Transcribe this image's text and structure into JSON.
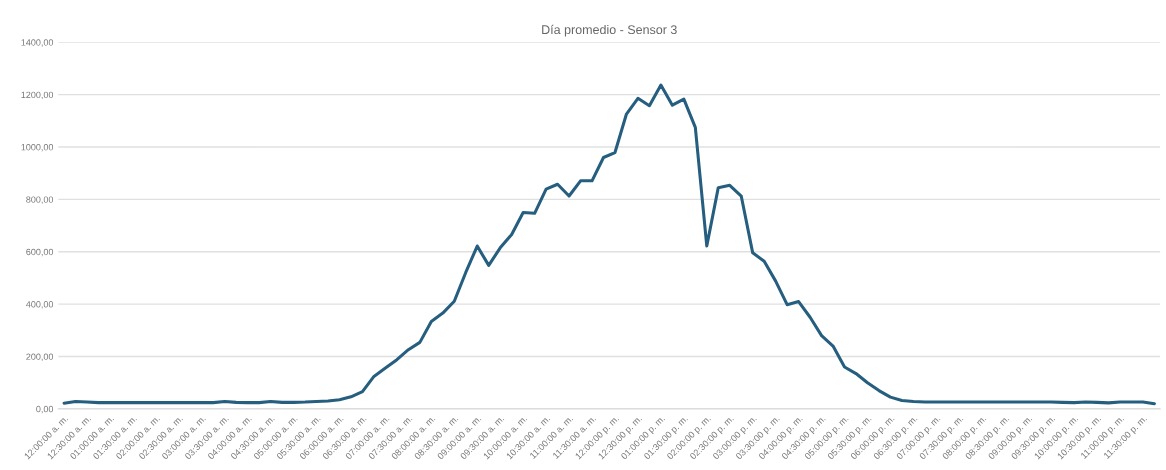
{
  "chart_data": {
    "type": "line",
    "title": "Día promedio - Sensor 3",
    "categories": [
      "12:00:00 a. m.",
      null,
      "12:30:00 a. m.",
      null,
      "01:00:00 a. m.",
      null,
      "01:30:00 a. m.",
      null,
      "02:00:00 a. m.",
      null,
      "02:30:00 a. m.",
      null,
      "03:00:00 a. m.",
      null,
      "03:30:00 a. m.",
      null,
      "04:00:00 a. m.",
      null,
      "04:30:00 a. m.",
      null,
      "05:00:00 a. m.",
      null,
      "05:30:00 a. m.",
      null,
      "06:00:00 a. m.",
      null,
      "06:30:00 a. m.",
      null,
      "07:00:00 a. m.",
      null,
      "07:30:00 a. m.",
      null,
      "08:00:00 a. m.",
      null,
      "08:30:00 a. m.",
      null,
      "09:00:00 a. m.",
      null,
      "09:30:00 a. m.",
      null,
      "10:00:00 a. m.",
      null,
      "10:30:00 a. m.",
      null,
      "11:00:00 a. m.",
      null,
      "11:30:00 a. m.",
      null,
      "12:00:00 p. m.",
      null,
      "12:30:00 p. m.",
      null,
      "01:00:00 p. m.",
      null,
      "01:30:00 p. m.",
      null,
      "02:00:00 p. m.",
      null,
      "02:30:00 p. m.",
      null,
      "03:00:00 p. m.",
      null,
      "03:30:00 p. m.",
      null,
      "04:00:00 p. m.",
      null,
      "04:30:00 p. m.",
      null,
      "05:00:00 p. m.",
      null,
      "05:30:00 p. m.",
      null,
      "06:00:00 p. m.",
      null,
      "06:30:00 p. m.",
      null,
      "07:00:00 p. m.",
      null,
      "07:30:00 p. m.",
      null,
      "08:00:00 p. m.",
      null,
      "08:30:00 p. m.",
      null,
      "09:00:00 p. m.",
      null,
      "09:30:00 p. m.",
      null,
      "10:00:00 p. m.",
      null,
      "10:30:00 p. m.",
      null,
      "11:00:00 p. m.",
      null,
      "11:30:00 p. m.",
      null
    ],
    "series": [
      {
        "color": "#255e7e",
        "values": [
          22,
          28,
          26,
          24,
          24,
          24,
          24,
          24,
          24,
          24,
          24,
          24,
          24,
          24,
          28,
          25,
          24,
          24,
          28,
          25,
          25,
          26,
          28,
          30,
          35,
          46,
          66,
          124,
          156,
          188,
          226,
          254,
          334,
          366,
          411,
          521,
          622,
          548,
          615,
          666,
          750,
          747,
          839,
          858,
          813,
          871,
          871,
          960,
          979,
          1126,
          1186,
          1158,
          1237,
          1160,
          1183,
          1075,
          622,
          845,
          854,
          813,
          596,
          564,
          488,
          398,
          410,
          350,
          280,
          240,
          160,
          135,
          100,
          70,
          45,
          32,
          28,
          26,
          26,
          26,
          26,
          26,
          26,
          26,
          26,
          26,
          26,
          26,
          26,
          25,
          24,
          26,
          25,
          23,
          26,
          26,
          26,
          20
        ]
      }
    ],
    "ylim": [
      0,
      1400
    ],
    "yticks": [
      {
        "value": 0,
        "label": "0,00"
      },
      {
        "value": 200,
        "label": "200,00"
      },
      {
        "value": 400,
        "label": "400,00"
      },
      {
        "value": 600,
        "label": "600,00"
      },
      {
        "value": 800,
        "label": "800,00"
      },
      {
        "value": 1000,
        "label": "1000,00"
      },
      {
        "value": 1200,
        "label": "1200,00"
      },
      {
        "value": 1400,
        "label": "1400,00"
      }
    ],
    "grid": "y",
    "marker": "none",
    "line_style": "solid"
  }
}
